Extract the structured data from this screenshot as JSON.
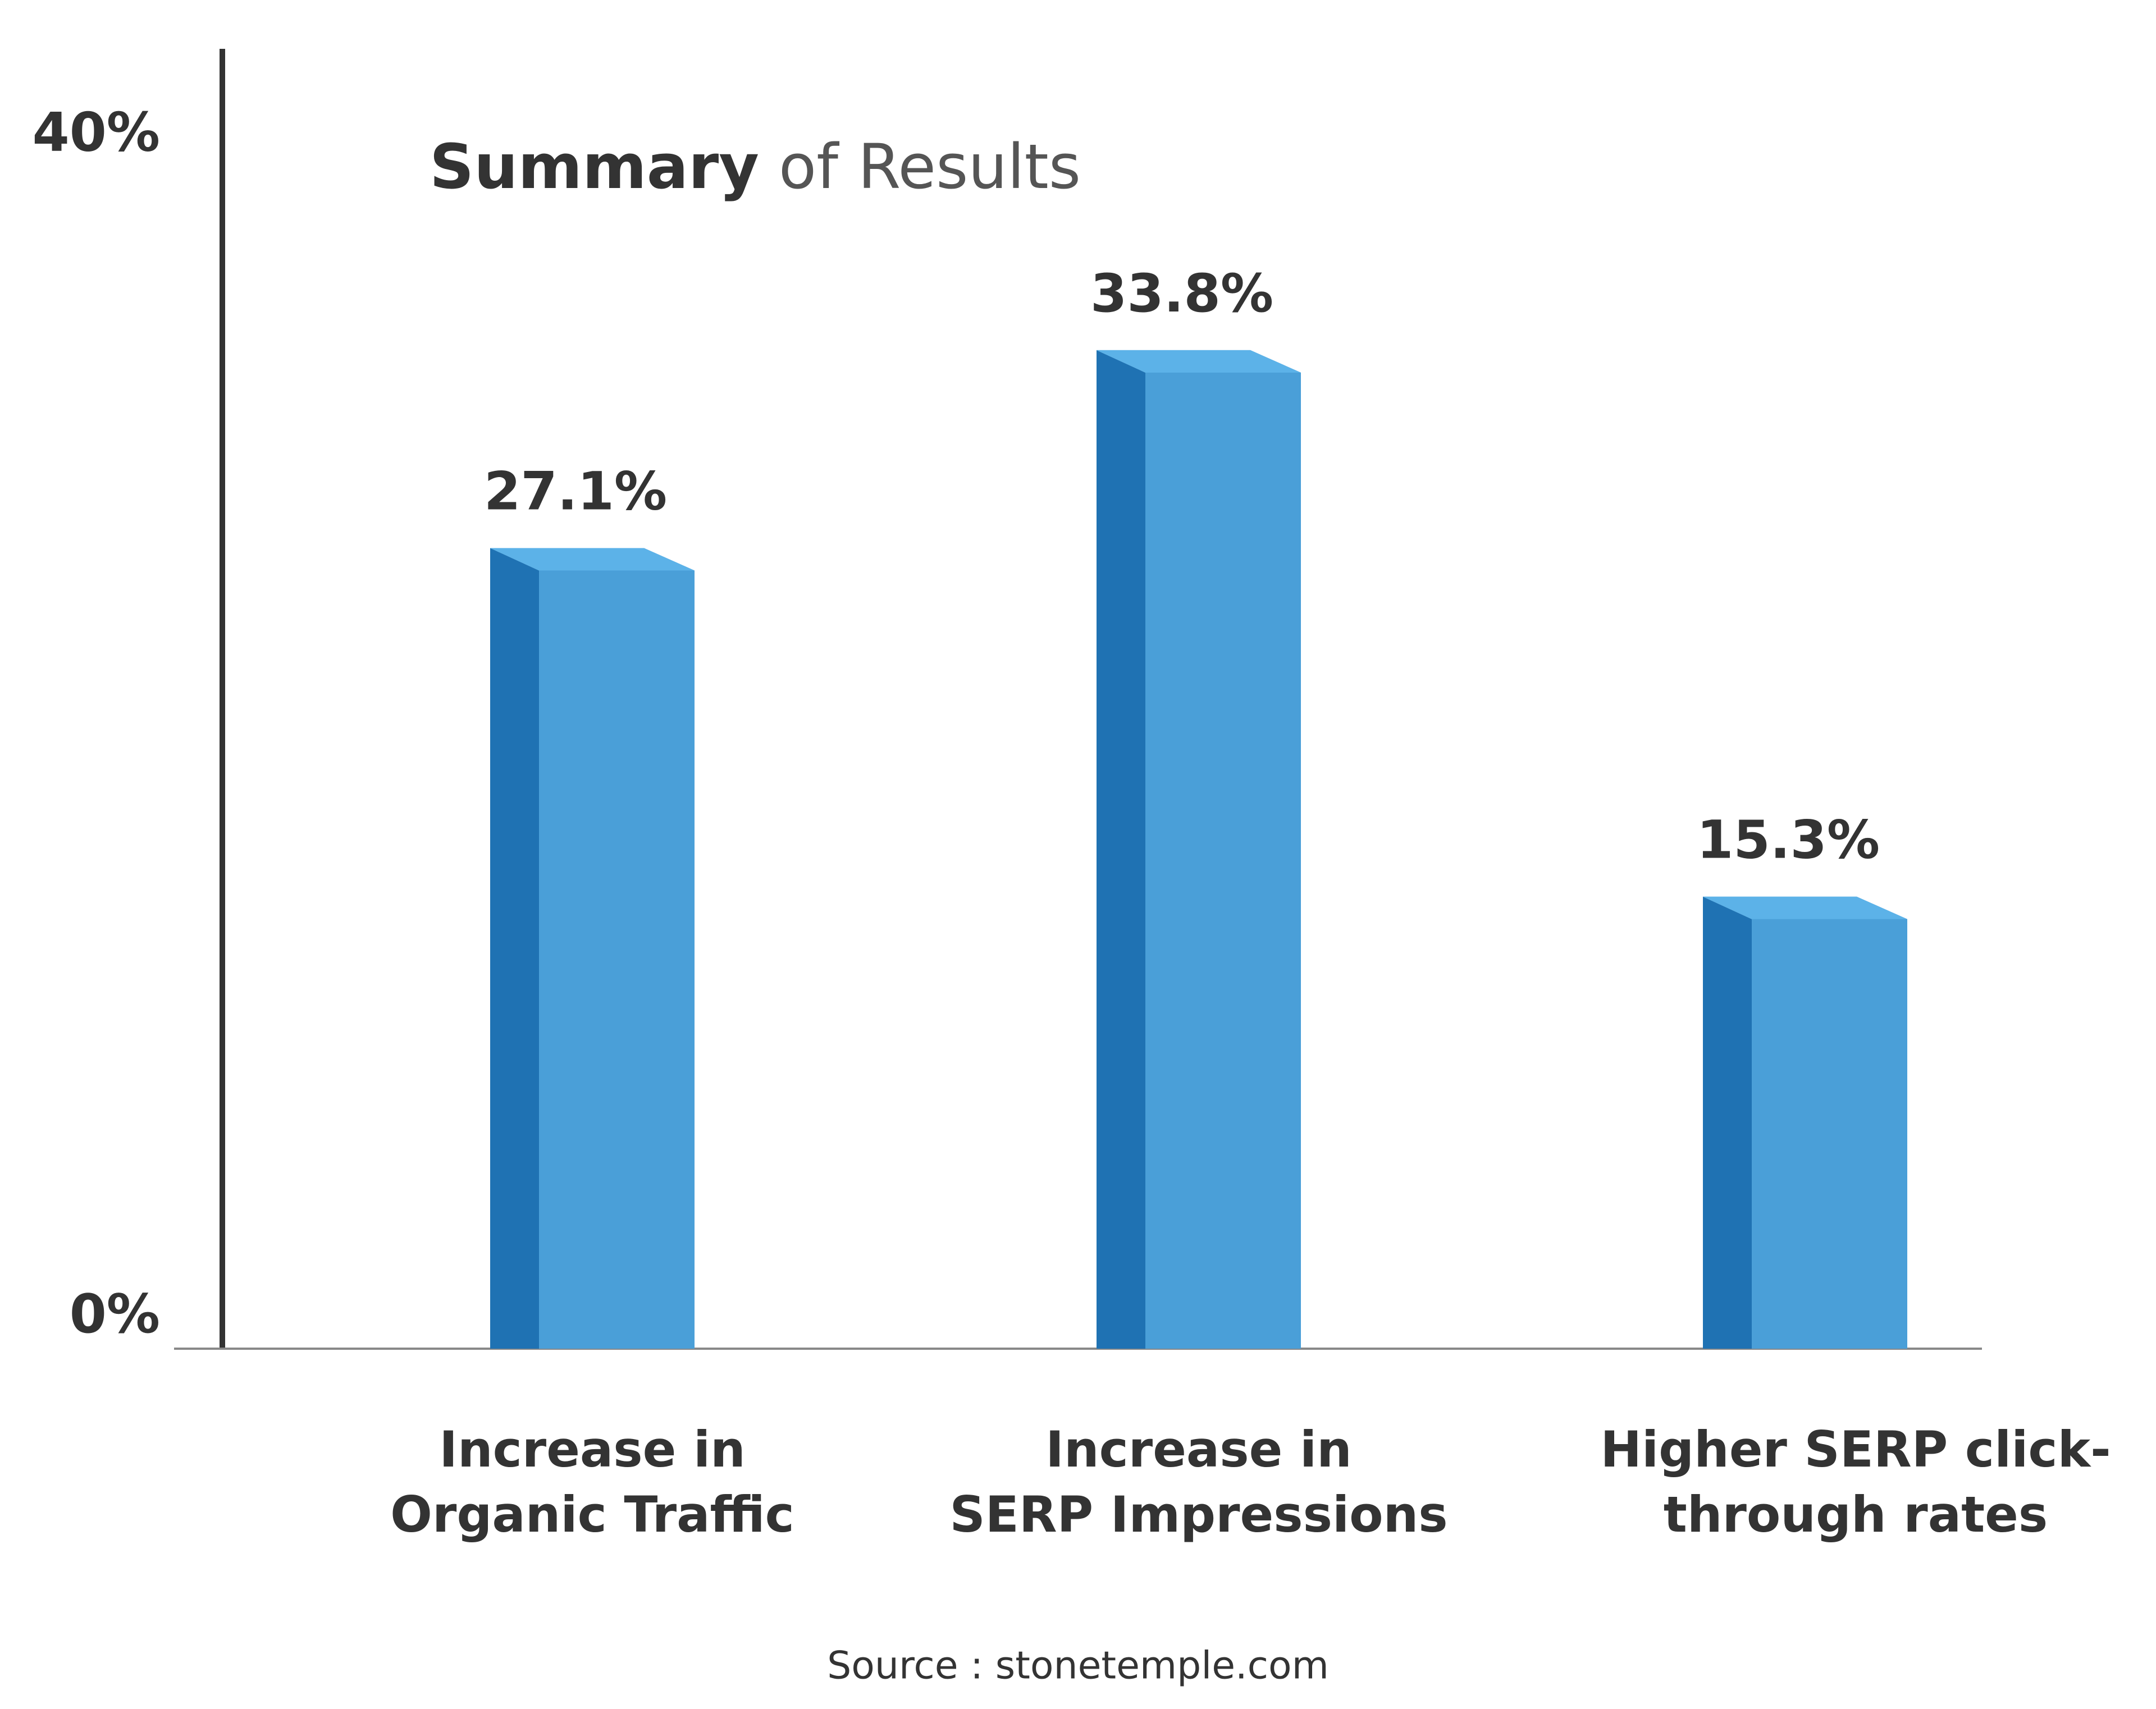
{
  "chart_data": {
    "type": "bar3d",
    "title_bold": "Summary",
    "title_light": "of Results",
    "categories": [
      [
        "Increase in",
        "Organic Traffic"
      ],
      [
        "Increase in",
        "SERP Impressions"
      ],
      [
        "Higher SERP click-",
        "through rates"
      ]
    ],
    "values": [
      27.1,
      33.8,
      15.3
    ],
    "value_labels": [
      "27.1%",
      "33.8%",
      "15.3%"
    ],
    "color": "#4a9fd8",
    "side_color": "#1f72b3",
    "ylim": [
      0,
      44
    ],
    "yticks": [
      {
        "value": 0,
        "label": "0%"
      },
      {
        "value": 40,
        "label": "40%"
      }
    ],
    "source": "Source : stonetemple.com"
  }
}
